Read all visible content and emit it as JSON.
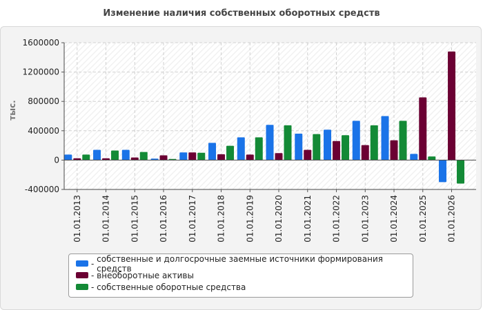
{
  "chart_data": {
    "type": "bar",
    "title": "Изменение наличия собственных оборотных средств",
    "xlabel": "",
    "ylabel": "тыс.",
    "ylim": [
      -400000,
      1600000
    ],
    "yticks": [
      -400000,
      0,
      400000,
      800000,
      1200000,
      1600000
    ],
    "grid": true,
    "legend_position": "bottom",
    "categories": [
      "01.01.2013",
      "01.01.2014",
      "01.01.2015",
      "01.01.2016",
      "01.01.2017",
      "01.01.2018",
      "01.01.2019",
      "01.01.2020",
      "01.01.2021",
      "01.01.2022",
      "01.01.2023",
      "01.01.2024",
      "01.01.2025",
      "01.01.2026"
    ],
    "series": [
      {
        "name": "собственные и долгосрочные заемные источники формирования средств",
        "color": "#1a73e8",
        "values": [
          75000,
          140000,
          140000,
          20000,
          105000,
          235000,
          310000,
          480000,
          360000,
          415000,
          535000,
          600000,
          85000,
          -300000
        ]
      },
      {
        "name": "внеоборотные активы",
        "color": "#6b0033",
        "values": [
          25000,
          25000,
          35000,
          65000,
          105000,
          80000,
          75000,
          95000,
          140000,
          260000,
          205000,
          270000,
          855000,
          1480000
        ]
      },
      {
        "name": "собственные оборотные средства",
        "color": "#138a36",
        "values": [
          75000,
          130000,
          110000,
          15000,
          100000,
          195000,
          310000,
          475000,
          355000,
          340000,
          475000,
          535000,
          50000,
          -320000
        ]
      }
    ]
  }
}
